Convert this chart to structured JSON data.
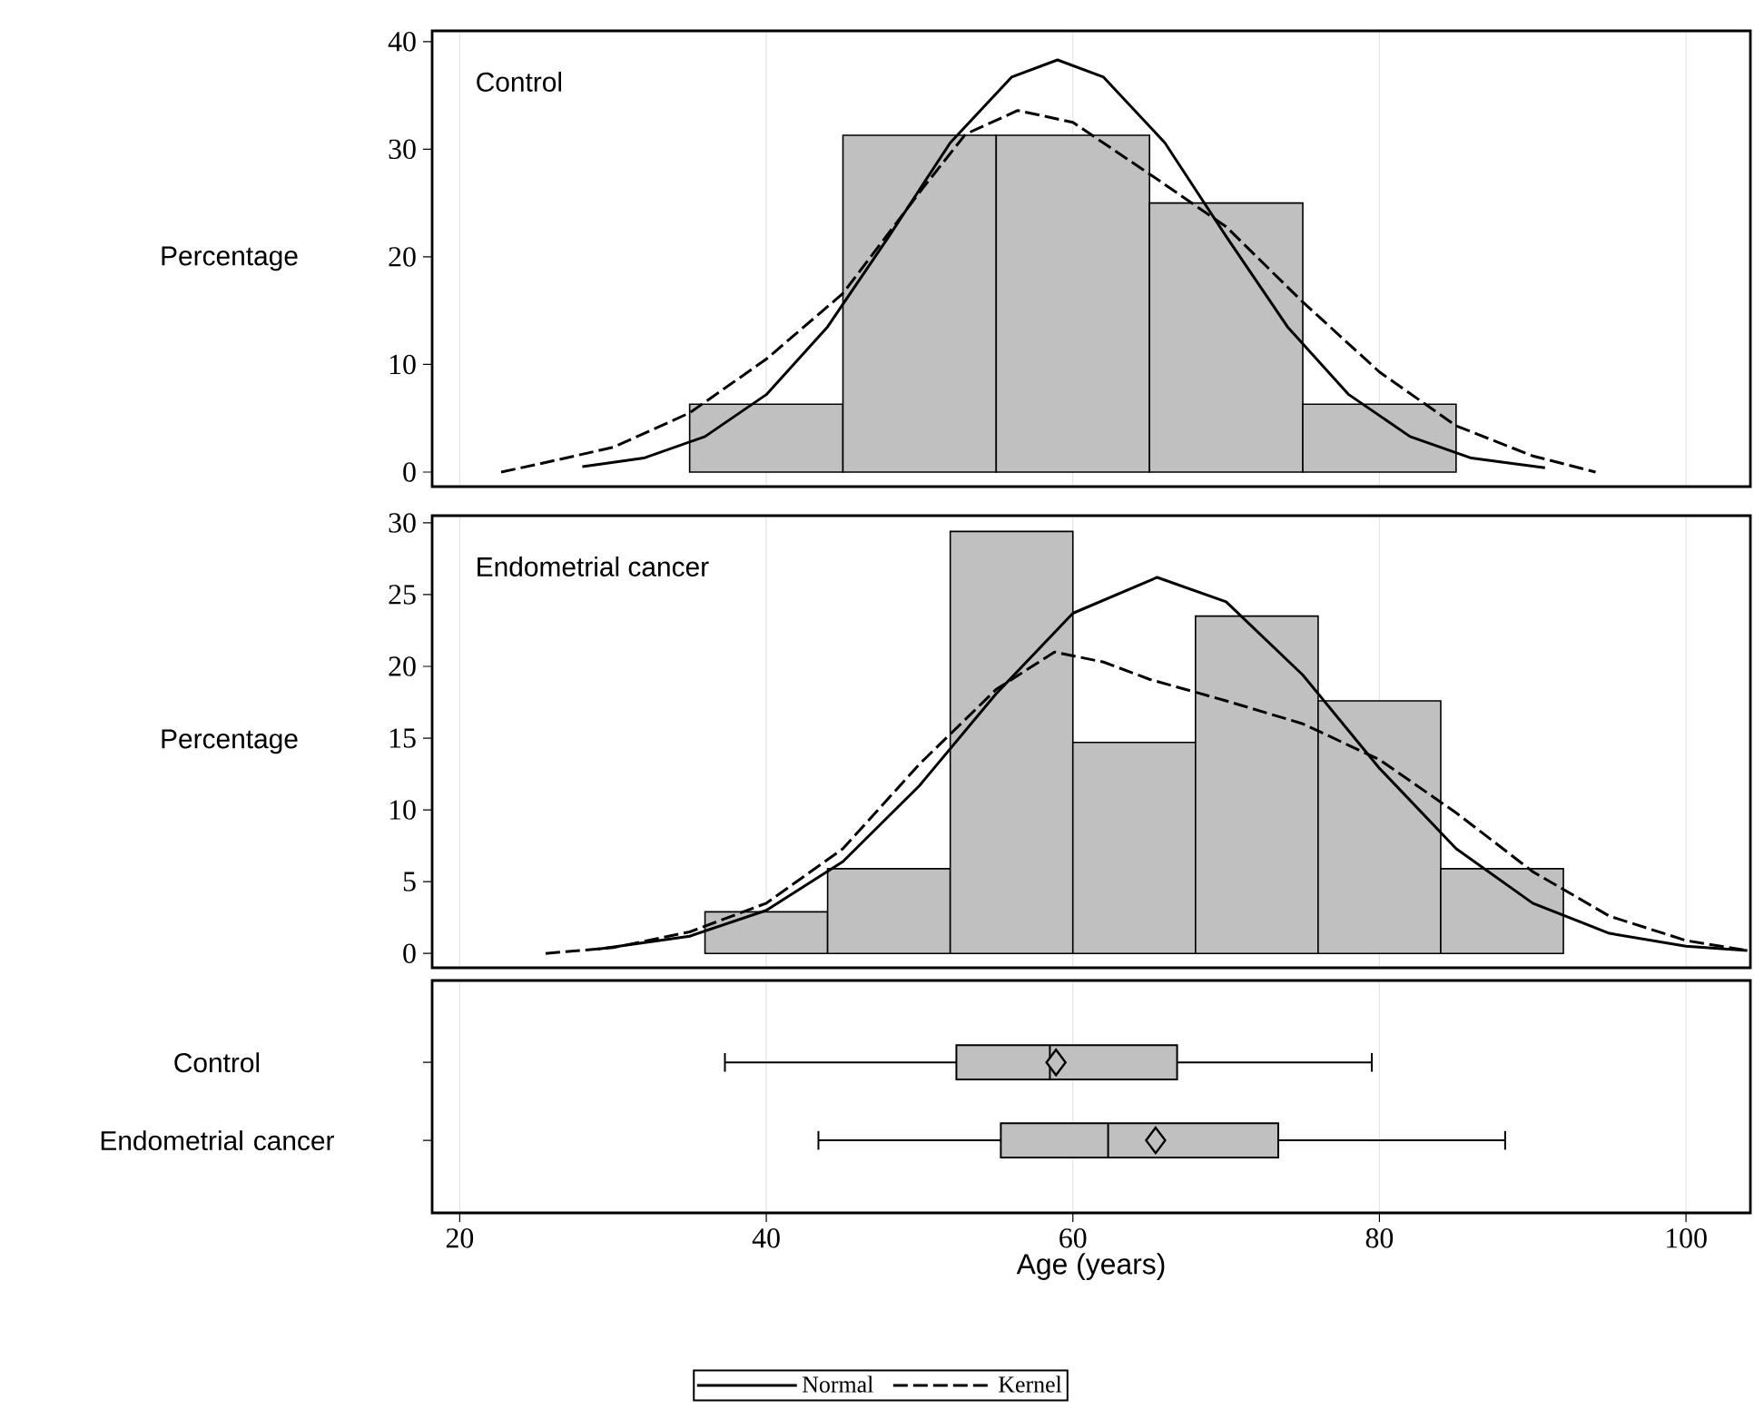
{
  "chart_data": [
    {
      "type": "histogram",
      "annotations": [
        "Control"
      ],
      "ylabel": "Percentage",
      "bins": [
        35,
        45,
        55,
        65,
        75,
        85
      ],
      "values": [
        6.3,
        31.3,
        31.3,
        25,
        6.3
      ],
      "color": "#c0c0c0",
      "xlim": [
        18.2,
        104.2
      ],
      "xticks": [
        20,
        40,
        60,
        80,
        100
      ],
      "ylim": [
        -1.35,
        41
      ],
      "yticks": [
        0,
        10,
        20,
        30,
        40
      ],
      "tick_labels": "y",
      "grid": "x",
      "marker": "none",
      "series": [
        {
          "type": "line",
          "line_style": "solid",
          "color": "#000000",
          "x": [
            28,
            32,
            36,
            40,
            44,
            48,
            52,
            56,
            59,
            62,
            66,
            70,
            74,
            78,
            82,
            86,
            90.8
          ],
          "values": [
            0.5,
            1.3,
            3.3,
            7.2,
            13.5,
            21.9,
            30.6,
            36.7,
            38.3,
            36.7,
            30.6,
            21.9,
            13.5,
            7.2,
            3.3,
            1.3,
            0.4
          ]
        },
        {
          "type": "line",
          "line_style": "dashed",
          "color": "#000000",
          "x": [
            22.7,
            25,
            30,
            35,
            40,
            45,
            50,
            53,
            56.4,
            60,
            65,
            70,
            75,
            80,
            85,
            90,
            94.1
          ],
          "values": [
            0,
            0.7,
            2.3,
            5.5,
            10.5,
            16.6,
            26,
            31.4,
            33.6,
            32.5,
            27.7,
            22.8,
            15.8,
            9.3,
            4.3,
            1.5,
            0
          ]
        }
      ]
    },
    {
      "type": "histogram",
      "annotations": [
        "Endometrial cancer"
      ],
      "ylabel": "Percentage",
      "bins": [
        36,
        44,
        52,
        60,
        68,
        76,
        84,
        92
      ],
      "values": [
        2.9,
        5.9,
        29.4,
        14.7,
        23.5,
        17.6,
        5.9
      ],
      "color": "#c0c0c0",
      "xlim": [
        18.2,
        104.2
      ],
      "xticks": [
        20,
        40,
        60,
        80,
        100
      ],
      "ylim": [
        -1,
        30.5
      ],
      "yticks": [
        0,
        5,
        10,
        15,
        20,
        25,
        30
      ],
      "tick_labels": "y",
      "grid": "x",
      "marker": "none",
      "legend": "bottom",
      "series": [
        {
          "name": "Normal",
          "type": "line",
          "line_style": "solid",
          "color": "#000000",
          "x": [
            29,
            35,
            40,
            45,
            50,
            55,
            60,
            65.5,
            70,
            75,
            80,
            85,
            90,
            95,
            100,
            104
          ],
          "values": [
            0.3,
            1.2,
            3,
            6.4,
            11.7,
            18.1,
            23.7,
            26.2,
            24.5,
            19.4,
            12.9,
            7.3,
            3.5,
            1.4,
            0.5,
            0.2
          ]
        },
        {
          "name": "Kernel",
          "type": "line",
          "line_style": "dashed",
          "color": "#000000",
          "x": [
            25.6,
            30,
            35,
            40,
            45,
            50,
            55,
            58.8,
            62,
            65,
            70,
            75,
            80,
            85,
            90,
            95,
            100,
            104
          ],
          "values": [
            0,
            0.4,
            1.5,
            3.5,
            7.3,
            13.2,
            18.4,
            21,
            20.3,
            19.1,
            17.6,
            16,
            13.5,
            9.8,
            5.7,
            2.6,
            0.9,
            0.2
          ]
        }
      ]
    },
    {
      "type": "box",
      "orientation": "horizontal",
      "categories": [
        "Control",
        "Endometrial cancer"
      ],
      "xlabel": "Age (years)",
      "color": "#c0c0c0",
      "xlim": [
        18.2,
        104.2
      ],
      "xticks": [
        20,
        40,
        60,
        80,
        100
      ],
      "grid": "x",
      "boxes": [
        {
          "low": 37.3,
          "q1": 52.4,
          "median": 58.5,
          "q3": 66.8,
          "high": 79.5,
          "mean": 58.9
        },
        {
          "low": 43.4,
          "q1": 55.3,
          "median": 62.3,
          "q3": 73.4,
          "high": 88.2,
          "mean": 65.4
        }
      ]
    }
  ]
}
